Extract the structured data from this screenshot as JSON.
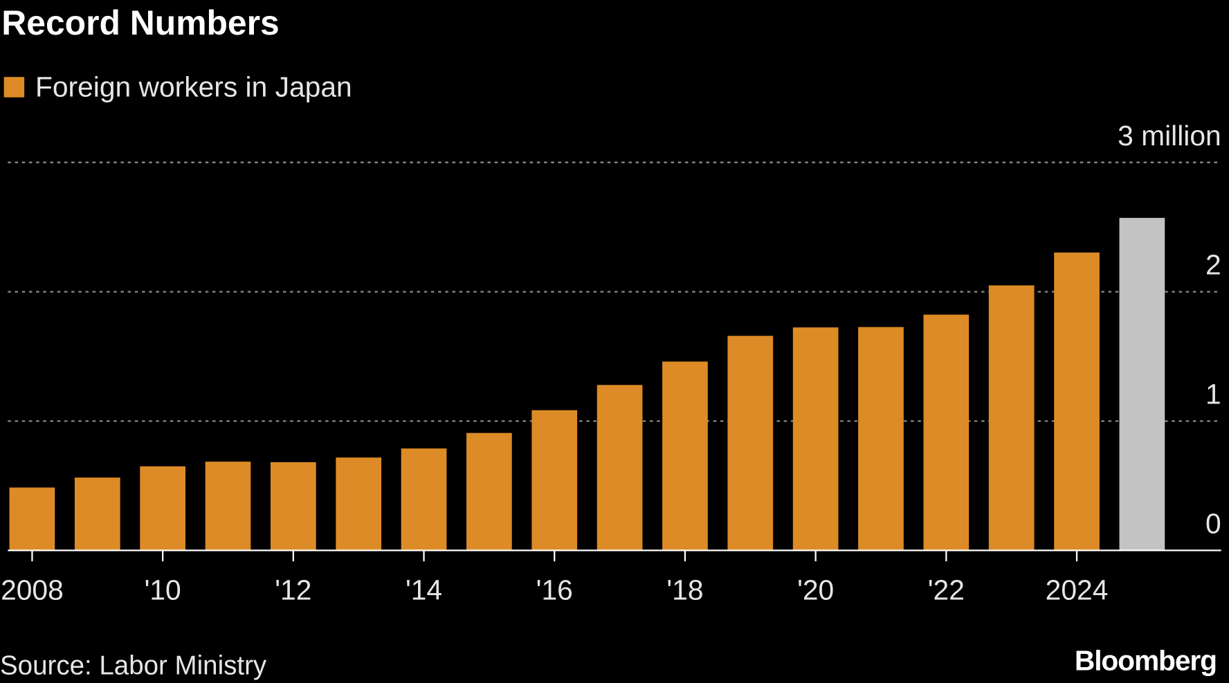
{
  "chart_data": {
    "type": "bar",
    "title": "Record Numbers",
    "legend": [
      {
        "label": "Foreign workers in Japan",
        "color": "#dd8b26"
      }
    ],
    "legend_placement": "top-left",
    "x": [
      2008,
      2009,
      2010,
      2011,
      2012,
      2013,
      2014,
      2015,
      2016,
      2017,
      2018,
      2019,
      2020,
      2021,
      2022,
      2023,
      2024,
      2025
    ],
    "values": [
      0.486,
      0.563,
      0.65,
      0.686,
      0.682,
      0.718,
      0.788,
      0.908,
      1.084,
      1.279,
      1.46,
      1.659,
      1.724,
      1.727,
      1.823,
      2.049,
      2.303,
      2.571
    ],
    "highlight_color": "#c3c3c3",
    "highlight_index": 17,
    "unit": "million",
    "ylim": [
      0,
      3
    ],
    "yticks": [
      {
        "value": 0,
        "label": "0"
      },
      {
        "value": 1,
        "label": "1"
      },
      {
        "value": 2,
        "label": "2"
      },
      {
        "value": 3,
        "label": "3 million"
      }
    ],
    "xticks": [
      {
        "value": 2008,
        "label": "2008"
      },
      {
        "value": 2010,
        "label": "'10"
      },
      {
        "value": 2012,
        "label": "'12"
      },
      {
        "value": 2014,
        "label": "'14"
      },
      {
        "value": 2016,
        "label": "'16"
      },
      {
        "value": 2018,
        "label": "'18"
      },
      {
        "value": 2020,
        "label": "'20"
      },
      {
        "value": 2022,
        "label": "'22"
      },
      {
        "value": 2024,
        "label": "2024"
      }
    ],
    "grid": true,
    "xlabel": "",
    "ylabel": ""
  },
  "footer": {
    "source": "Source: Labor Ministry",
    "brand": "Bloomberg"
  }
}
